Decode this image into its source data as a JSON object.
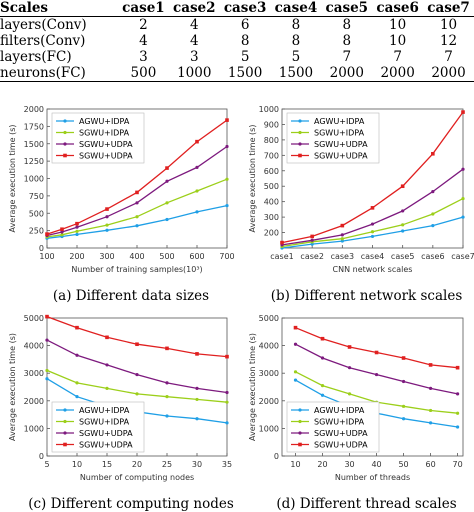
{
  "table": {
    "header": [
      "Scales",
      "case1",
      "case2",
      "case3",
      "case4",
      "case5",
      "case6",
      "case7"
    ],
    "rows": [
      {
        "label": "layers(Conv)",
        "values": [
          "2",
          "4",
          "6",
          "8",
          "8",
          "10",
          "10"
        ]
      },
      {
        "label": "filters(Conv)",
        "values": [
          "4",
          "4",
          "8",
          "8",
          "8",
          "10",
          "12"
        ]
      },
      {
        "label": "layers(FC)",
        "values": [
          "3",
          "3",
          "5",
          "5",
          "7",
          "7",
          "7"
        ]
      },
      {
        "label": "neurons(FC)",
        "values": [
          "500",
          "1000",
          "1500",
          "1500",
          "2000",
          "2000",
          "2000"
        ]
      }
    ]
  },
  "colors": {
    "AGWU+IDPA": "#1f9fe6",
    "SGWU+IDPA": "#9ccf1a",
    "SGWU+UDPA": "#7d1a7e",
    "SGWU+UDPA_red": "#e02020"
  },
  "chart_data": [
    {
      "type": "line",
      "caption": "(a)  Different data sizes",
      "xlabel": "Number of training samples(10³)",
      "ylabel": "Average execution time (s)",
      "x": [
        100,
        150,
        200,
        300,
        400,
        500,
        600,
        700
      ],
      "xticks": [
        "100",
        "200",
        "300",
        "400",
        "500",
        "600",
        "700"
      ],
      "ylim": [
        0,
        2000
      ],
      "yticks": [
        "0",
        "250",
        "500",
        "750",
        "1000",
        "1250",
        "1500",
        "1750",
        "2000"
      ],
      "legend_position": "top-left",
      "series": [
        {
          "name": "AGWU+IDPA",
          "color": "#1f9fe6",
          "marker": "dot",
          "values": [
            140,
            165,
            195,
            255,
            320,
            410,
            520,
            610
          ]
        },
        {
          "name": "SGWU+IDPA",
          "color": "#9ccf1a",
          "marker": "dot",
          "values": [
            160,
            190,
            240,
            330,
            450,
            650,
            820,
            990
          ]
        },
        {
          "name": "SGWU+UDPA",
          "color": "#7d1a7e",
          "marker": "dot",
          "values": [
            180,
            230,
            300,
            450,
            650,
            960,
            1160,
            1460
          ]
        },
        {
          "name": "SGWU+UDPA",
          "color": "#e02020",
          "marker": "square",
          "values": [
            200,
            270,
            350,
            560,
            800,
            1150,
            1530,
            1840
          ]
        }
      ]
    },
    {
      "type": "line",
      "caption": "(b)  Different network scales",
      "xlabel": "CNN network scales",
      "ylabel": "Average execution time (s)",
      "x": [
        "case1",
        "case2",
        "case3",
        "case4",
        "case5",
        "case6",
        "case7"
      ],
      "xticks": [
        "case1",
        "case2",
        "case3",
        "case4",
        "case5",
        "case6",
        "case7"
      ],
      "ylim": [
        0,
        1000
      ],
      "yticks": [
        "200",
        "300",
        "400",
        "500",
        "600",
        "700",
        "800",
        "900",
        "1000"
      ],
      "legend_position": "top-left",
      "series": [
        {
          "name": "AGWU+IDPA",
          "color": "#1f9fe6",
          "marker": "dot",
          "values": [
            100,
            125,
            145,
            175,
            210,
            245,
            300
          ]
        },
        {
          "name": "SGWU+IDPA",
          "color": "#9ccf1a",
          "marker": "dot",
          "values": [
            110,
            140,
            160,
            205,
            250,
            320,
            420
          ]
        },
        {
          "name": "SGWU+UDPA",
          "color": "#7d1a7e",
          "marker": "dot",
          "values": [
            120,
            150,
            185,
            255,
            340,
            465,
            610
          ]
        },
        {
          "name": "SGWU+UDPA",
          "color": "#e02020",
          "marker": "square",
          "values": [
            135,
            175,
            245,
            360,
            500,
            710,
            980
          ]
        }
      ]
    },
    {
      "type": "line",
      "caption": "(c)  Different computing nodes",
      "xlabel": "Number of computing nodes",
      "ylabel": "Average execution time (s)",
      "x": [
        5,
        10,
        15,
        20,
        25,
        30,
        35
      ],
      "xticks": [
        "5",
        "10",
        "15",
        "20",
        "25",
        "30",
        "35"
      ],
      "ylim": [
        0,
        5000
      ],
      "yticks": [
        "0",
        "1000",
        "2000",
        "3000",
        "4000",
        "5000"
      ],
      "legend_position": "bottom-left",
      "series": [
        {
          "name": "AGWU+IDPA",
          "color": "#1f9fe6",
          "marker": "dot",
          "values": [
            2800,
            2150,
            1800,
            1600,
            1450,
            1350,
            1200
          ]
        },
        {
          "name": "SGWU+IDPA",
          "color": "#9ccf1a",
          "marker": "dot",
          "values": [
            3100,
            2650,
            2450,
            2250,
            2150,
            2050,
            1950
          ]
        },
        {
          "name": "SGWU+UDPA",
          "color": "#7d1a7e",
          "marker": "dot",
          "values": [
            4200,
            3650,
            3300,
            2950,
            2650,
            2450,
            2300
          ]
        },
        {
          "name": "SGWU+UDPA",
          "color": "#e02020",
          "marker": "square",
          "values": [
            5050,
            4650,
            4300,
            4050,
            3900,
            3700,
            3600
          ]
        }
      ]
    },
    {
      "type": "line",
      "caption": "(d)  Different thread scales",
      "xlabel": "Number of threads",
      "ylabel": "Average execution time (s)",
      "x": [
        10,
        20,
        30,
        40,
        50,
        60,
        70
      ],
      "xticks": [
        "10",
        "20",
        "30",
        "40",
        "50",
        "60",
        "70"
      ],
      "ylim": [
        0,
        5000
      ],
      "yticks": [
        "0",
        "1000",
        "2000",
        "3000",
        "4000",
        "5000"
      ],
      "legend_position": "bottom-left",
      "series": [
        {
          "name": "AGWU+IDPA",
          "color": "#1f9fe6",
          "marker": "dot",
          "values": [
            2750,
            2200,
            1800,
            1550,
            1350,
            1200,
            1050
          ]
        },
        {
          "name": "SGWU+IDPA",
          "color": "#9ccf1a",
          "marker": "dot",
          "values": [
            3050,
            2550,
            2250,
            1950,
            1800,
            1650,
            1550
          ]
        },
        {
          "name": "SGWU+UDPA",
          "color": "#7d1a7e",
          "marker": "dot",
          "values": [
            4050,
            3550,
            3200,
            2950,
            2700,
            2450,
            2250
          ]
        },
        {
          "name": "SGWU+UDPA",
          "color": "#e02020",
          "marker": "square",
          "values": [
            4650,
            4250,
            3950,
            3750,
            3550,
            3300,
            3200
          ]
        }
      ]
    }
  ]
}
